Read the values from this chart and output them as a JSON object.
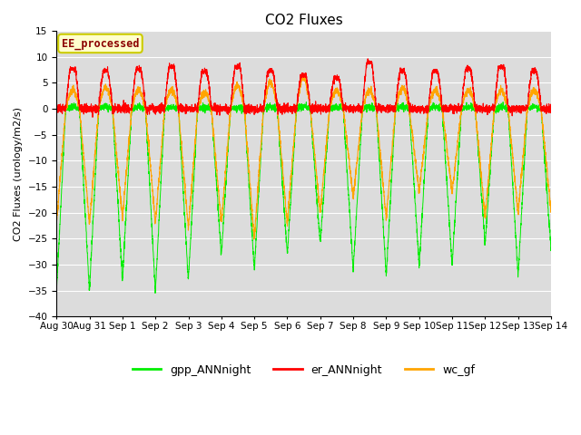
{
  "title": "CO2 Fluxes",
  "ylabel": "CO2 Fluxes (urology/m2/s)",
  "ylim": [
    -40,
    15
  ],
  "yticks": [
    -40,
    -35,
    -30,
    -25,
    -20,
    -15,
    -10,
    -5,
    0,
    5,
    10,
    15
  ],
  "plot_bg_color": "#dcdcdc",
  "grid_color": "white",
  "annotation_text": "EE_processed",
  "annotation_color": "#8b0000",
  "annotation_bg": "#ffffcc",
  "annotation_border": "#cccc00",
  "colors": {
    "gpp": "#00ee00",
    "er": "#ff0000",
    "wc": "#ffa500"
  },
  "legend_labels": [
    "gpp_ANNnight",
    "er_ANNnight",
    "wc_gf"
  ],
  "n_days": 15,
  "xtick_labels": [
    "Aug 30",
    "Aug 31",
    "Sep 1",
    "Sep 2",
    "Sep 3",
    "Sep 4",
    "Sep 5",
    "Sep 6",
    "Sep 7",
    "Sep 8",
    "Sep 9",
    "Sep 10",
    "Sep 11",
    "Sep 12",
    "Sep 13",
    "Sep 14"
  ],
  "title_fontsize": 11,
  "axis_fontsize": 8,
  "tick_fontsize": 7.5,
  "figsize": [
    6.4,
    4.8
  ],
  "dpi": 100
}
